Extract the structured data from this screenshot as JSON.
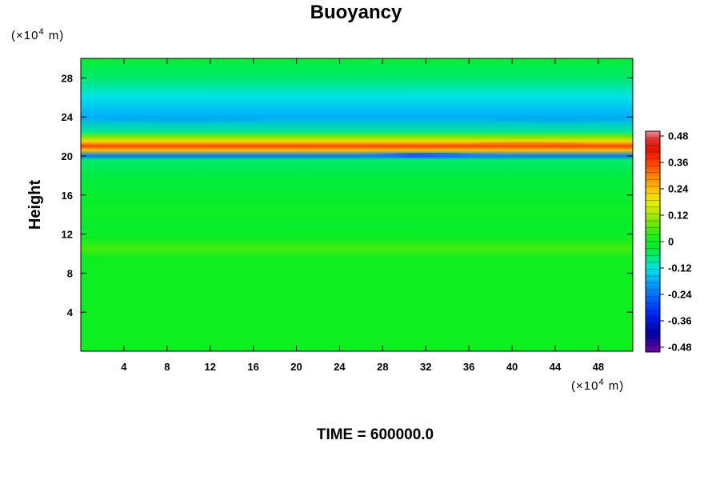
{
  "chart_data": {
    "type": "heatmap",
    "title": "Buoyancy",
    "ylabel": "Height",
    "xlabel": "",
    "y_unit": {
      "prefix": "(×10",
      "exp": "4",
      "suffix": " m)"
    },
    "x_unit": {
      "prefix": "(×10",
      "exp": "4",
      "suffix": " m)"
    },
    "xlim": [
      0,
      51.2
    ],
    "ylim": [
      0,
      30
    ],
    "x_ticks": [
      "4",
      "8",
      "12",
      "16",
      "20",
      "24",
      "28",
      "32",
      "36",
      "40",
      "44",
      "48"
    ],
    "y_ticks": [
      "4",
      "8",
      "12",
      "16",
      "20",
      "24",
      "28"
    ],
    "colorbar": {
      "min": -0.48,
      "max": 0.48,
      "labels": [
        "0.48",
        "0.36",
        "0.24",
        "0.12",
        "0",
        "-0.12",
        "-0.24",
        "-0.36",
        "-0.48"
      ]
    },
    "field_profile": [
      {
        "height": 0,
        "value": 0.0
      },
      {
        "height": 9.5,
        "value": 0.0
      },
      {
        "height": 10.5,
        "value": 0.05
      },
      {
        "height": 11.5,
        "value": 0.0
      },
      {
        "height": 13.0,
        "value": -0.02
      },
      {
        "height": 14.0,
        "value": 0.0
      },
      {
        "height": 16.0,
        "value": -0.02
      },
      {
        "height": 18.0,
        "value": -0.04
      },
      {
        "height": 19.6,
        "value": -0.06
      },
      {
        "height": 20.0,
        "value": -0.22
      },
      {
        "height": 20.6,
        "value": 0.22
      },
      {
        "height": 21.0,
        "value": 0.34
      },
      {
        "height": 21.5,
        "value": 0.2
      },
      {
        "height": 22.0,
        "value": 0.08
      },
      {
        "height": 22.5,
        "value": -0.08
      },
      {
        "height": 24.0,
        "value": -0.17
      },
      {
        "height": 26.0,
        "value": -0.12
      },
      {
        "height": 28.0,
        "value": -0.06
      },
      {
        "height": 30.0,
        "value": -0.03
      }
    ]
  },
  "footer": {
    "time_label": "TIME = 600000.0"
  }
}
